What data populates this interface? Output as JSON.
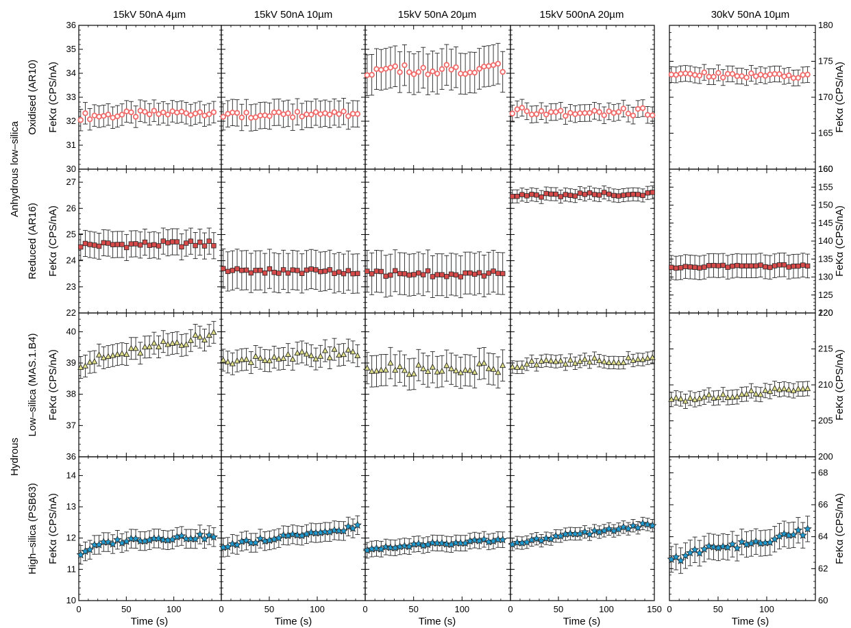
{
  "figure": {
    "column_titles": [
      "15kV 50nA 4µm",
      "15kV 50nA 10µm",
      "15kV 50nA 20µm",
      "15kV 500nA 20µm",
      "30kV 50nA 10µm"
    ],
    "group_labels": [
      "Anhydrous low–silica",
      "Hydrous"
    ],
    "x_label": "Time (s)",
    "y_axis_label": "FeKα (CPS/nA)",
    "row_labels": [
      "Oxidised (AR10)",
      "Reduced (AR16)",
      "Low–silica (MAS.1.B4)",
      "High–silica (PSB63)"
    ]
  },
  "chart_data": {
    "type": "scatter",
    "x_label": "Time (s)",
    "x_range": [
      0,
      150
    ],
    "x_ticks": [
      0,
      50,
      100,
      150
    ],
    "columns": [
      "15kV 50nA 4µm",
      "15kV 50nA 10µm",
      "15kV 50nA 20µm",
      "15kV 500nA 20µm",
      "30kV 50nA 10µm"
    ],
    "rows": [
      {
        "name": "Oxidised (AR10)",
        "marker": "circle",
        "color": "#f06a6a",
        "fill": "#ffffff",
        "left_ylim": [
          30,
          36
        ],
        "left_ticks": [
          30,
          31,
          32,
          33,
          34,
          35,
          36
        ],
        "right_ylim": [
          160,
          180
        ],
        "right_ticks": [
          160,
          165,
          170,
          175,
          180
        ],
        "panels": [
          {
            "level": 32.2,
            "trend": 0.2,
            "err": 0.45,
            "noise": 0.15
          },
          {
            "level": 32.25,
            "trend": 0.05,
            "err": 0.55,
            "noise": 0.12
          },
          {
            "level": 34.1,
            "trend": 0.1,
            "err": 0.85,
            "noise": 0.22
          },
          {
            "level": 32.4,
            "trend": 0.0,
            "err": 0.35,
            "noise": 0.18
          },
          {
            "level": 173.2,
            "trend": -0.3,
            "err": 1.1,
            "noise": 0.35
          }
        ]
      },
      {
        "name": "Reduced (AR16)",
        "marker": "square",
        "color": "#d64a4a",
        "fill": "#d64a4a",
        "left_ylim": [
          22,
          27.5
        ],
        "left_ticks": [
          22,
          23,
          24,
          25,
          26,
          27
        ],
        "right_ylim": [
          120,
          160
        ],
        "right_ticks": [
          120,
          125,
          130,
          135,
          140,
          145,
          150,
          155,
          160
        ],
        "panels": [
          {
            "level": 24.6,
            "trend": 0.05,
            "err": 0.5,
            "noise": 0.12
          },
          {
            "level": 23.6,
            "trend": 0.0,
            "err": 0.75,
            "noise": 0.1
          },
          {
            "level": 23.5,
            "trend": 0.0,
            "err": 0.8,
            "noise": 0.12
          },
          {
            "level": 26.5,
            "trend": 0.05,
            "err": 0.25,
            "noise": 0.08
          },
          {
            "level": 132.8,
            "trend": 0.3,
            "err": 3.3,
            "noise": 0.35
          }
        ]
      },
      {
        "name": "Low–silica (MAS.1.B4)",
        "marker": "triangle",
        "color": "#d9d98a",
        "fill": "#e0e08a",
        "left_ylim": [
          36,
          40.6
        ],
        "left_ticks": [
          36,
          37,
          38,
          39,
          40
        ],
        "right_ylim": [
          200,
          220
        ],
        "right_ticks": [
          200,
          205,
          210,
          215,
          220
        ],
        "panels": [
          {
            "level": 39.0,
            "trend": 0.9,
            "err": 0.35,
            "noise": 0.15
          },
          {
            "level": 39.1,
            "trend": 0.25,
            "err": 0.35,
            "noise": 0.15
          },
          {
            "level": 38.8,
            "trend": 0.0,
            "err": 0.5,
            "noise": 0.2
          },
          {
            "level": 38.95,
            "trend": 0.2,
            "err": 0.2,
            "noise": 0.1
          },
          {
            "level": 207.8,
            "trend": 1.8,
            "err": 1.0,
            "noise": 0.35
          }
        ]
      },
      {
        "name": "High–silica (PSB63)",
        "marker": "star",
        "color": "#1f9bd1",
        "fill": "#1f9bd1",
        "left_ylim": [
          10,
          14.6
        ],
        "left_ticks": [
          10,
          11,
          12,
          13,
          14
        ],
        "right_ylim": [
          60,
          69
        ],
        "right_ticks": [
          60,
          62,
          64,
          66,
          68
        ],
        "panels": [
          {
            "level": 11.95,
            "trend": 0.1,
            "err": 0.3,
            "noise": 0.08,
            "start": 11.5
          },
          {
            "level": 11.8,
            "trend": 0.55,
            "err": 0.3,
            "noise": 0.07,
            "start": 11.7
          },
          {
            "level": 11.7,
            "trend": 0.25,
            "err": 0.25,
            "noise": 0.06,
            "start": 11.65
          },
          {
            "level": 11.85,
            "trend": 0.6,
            "err": 0.2,
            "noise": 0.06,
            "start": 11.8
          },
          {
            "level": 62.8,
            "trend": 1.5,
            "err": 0.8,
            "noise": 0.25,
            "start": 62.5
          }
        ]
      }
    ]
  }
}
